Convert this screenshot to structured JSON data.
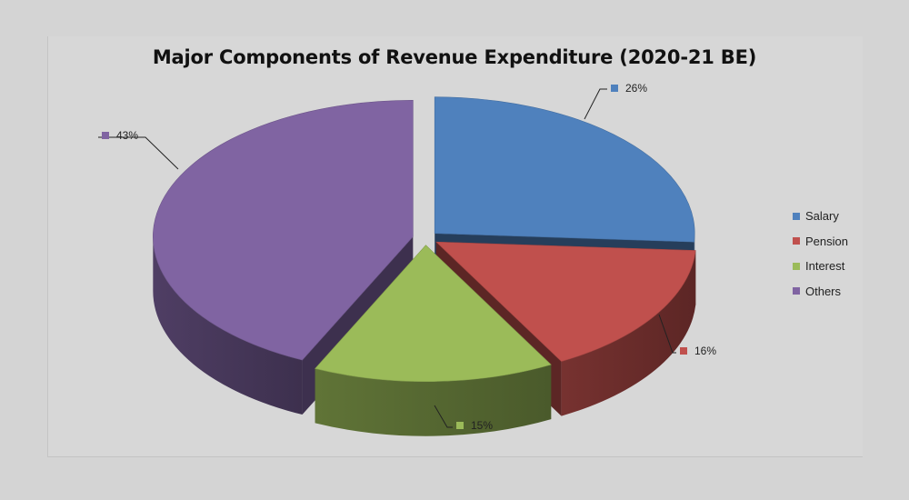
{
  "chart_data": {
    "type": "pie",
    "style": "3d-exploded",
    "title": "Major Components of Revenue Expenditure (2020-21 BE)",
    "categories": [
      "Salary",
      "Pension",
      "Interest",
      "Others"
    ],
    "values": [
      26,
      16,
      15,
      43
    ],
    "data_labels": [
      "26%",
      "16%",
      "15%",
      "43%"
    ],
    "colors": [
      "#4f81bd",
      "#c0504d",
      "#9bbb59",
      "#8064a2"
    ],
    "legend": {
      "position": "right",
      "items": [
        {
          "label": "Salary",
          "color": "#4f81bd"
        },
        {
          "label": "Pension",
          "color": "#c0504d"
        },
        {
          "label": "Interest",
          "color": "#9bbb59"
        },
        {
          "label": "Others",
          "color": "#8064a2"
        }
      ]
    }
  }
}
